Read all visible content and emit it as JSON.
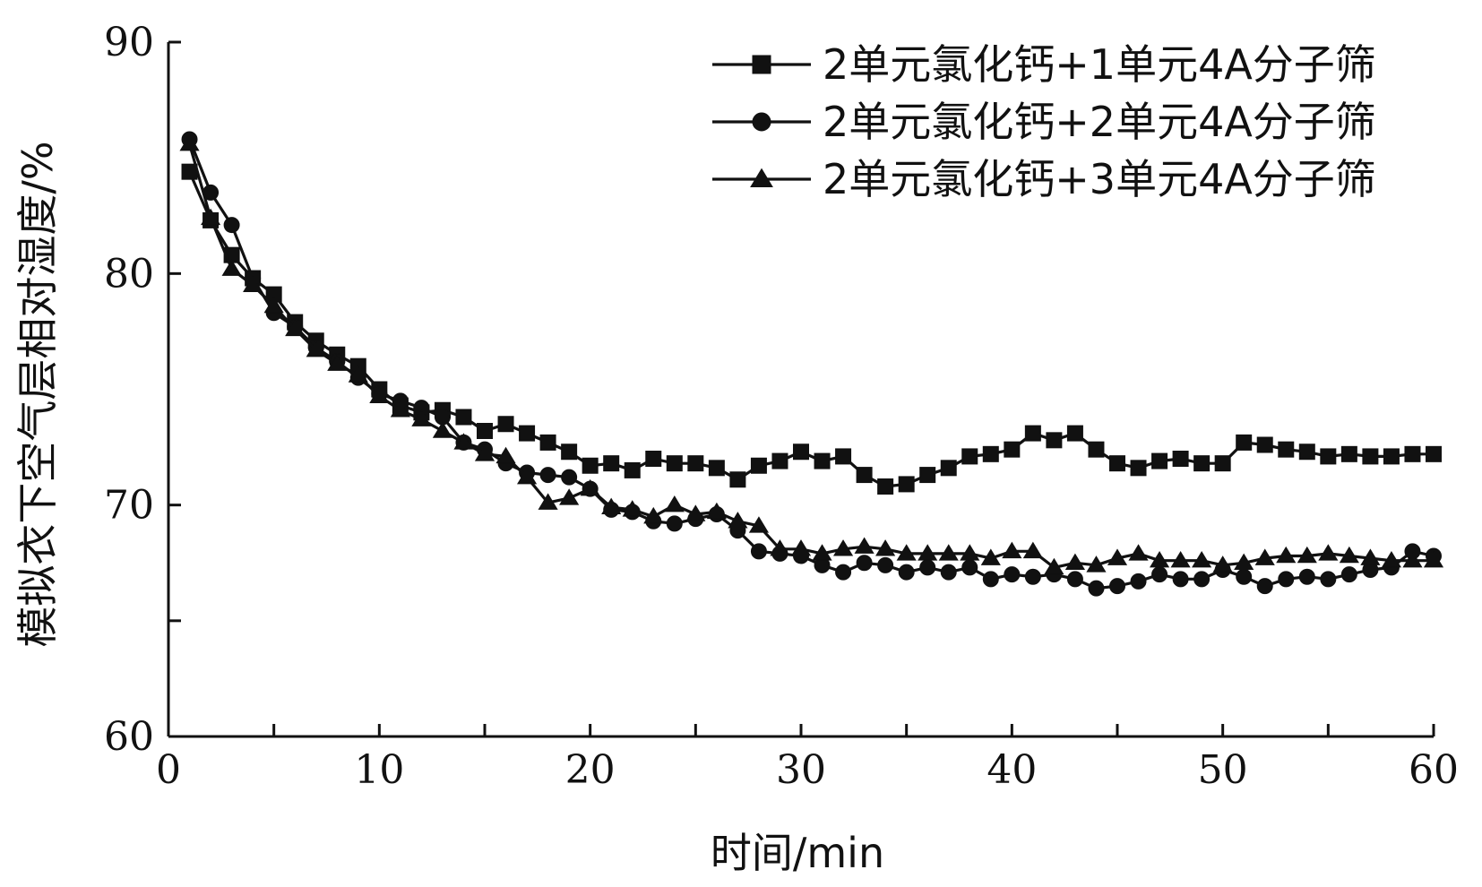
{
  "chart_data": {
    "type": "line",
    "title": "",
    "xlabel": "时间/min",
    "ylabel": "模拟衣下空气层相对湿度/%",
    "xlim": [
      0,
      60
    ],
    "ylim": [
      60,
      90
    ],
    "xticks": [
      0,
      10,
      20,
      30,
      40,
      50,
      60
    ],
    "yticks": [
      60,
      70,
      80,
      90
    ],
    "x_tick_labels": [
      "0",
      "10",
      "20",
      "30",
      "40",
      "50",
      "60"
    ],
    "y_tick_labels": [
      "60",
      "70",
      "80",
      "90"
    ],
    "y_minor_tick": 65,
    "grid": false,
    "legend_position": "top-right",
    "series": [
      {
        "name": "2单元氯化钙+1单元4A分子筛",
        "marker": "square",
        "x": [
          1,
          2,
          3,
          4,
          5,
          6,
          7,
          8,
          9,
          10,
          11,
          12,
          13,
          14,
          15,
          16,
          17,
          18,
          19,
          20,
          21,
          22,
          23,
          24,
          25,
          26,
          27,
          28,
          29,
          30,
          31,
          32,
          33,
          34,
          35,
          36,
          37,
          38,
          39,
          40,
          41,
          42,
          43,
          44,
          45,
          46,
          47,
          48,
          49,
          50,
          51,
          52,
          53,
          54,
          55,
          56,
          57,
          58,
          59,
          60
        ],
        "y": [
          84.4,
          82.3,
          80.8,
          79.8,
          79.1,
          77.9,
          77.1,
          76.5,
          76.0,
          75.0,
          74.3,
          74.0,
          74.1,
          73.8,
          73.2,
          73.5,
          73.1,
          72.7,
          72.3,
          71.7,
          71.8,
          71.5,
          72.0,
          71.8,
          71.8,
          71.6,
          71.1,
          71.7,
          71.9,
          72.3,
          71.9,
          72.1,
          71.3,
          70.8,
          70.9,
          71.3,
          71.6,
          72.1,
          72.2,
          72.4,
          73.1,
          72.8,
          73.1,
          72.4,
          71.8,
          71.6,
          71.9,
          72.0,
          71.8,
          71.8,
          72.7,
          72.6,
          72.4,
          72.3,
          72.1,
          72.2,
          72.1,
          72.1,
          72.2,
          72.2
        ]
      },
      {
        "name": "2单元氯化钙+2单元4A分子筛",
        "marker": "circle",
        "x": [
          1,
          2,
          3,
          4,
          5,
          6,
          7,
          8,
          9,
          10,
          11,
          12,
          13,
          14,
          15,
          16,
          17,
          18,
          19,
          20,
          21,
          22,
          23,
          24,
          25,
          26,
          27,
          28,
          29,
          30,
          31,
          32,
          33,
          34,
          35,
          36,
          37,
          38,
          39,
          40,
          41,
          42,
          43,
          44,
          45,
          46,
          47,
          48,
          49,
          50,
          51,
          52,
          53,
          54,
          55,
          56,
          57,
          58,
          59,
          60
        ],
        "y": [
          85.8,
          83.5,
          82.1,
          79.8,
          78.3,
          77.7,
          76.8,
          76.2,
          75.5,
          74.8,
          74.5,
          74.2,
          73.8,
          72.7,
          72.4,
          71.8,
          71.4,
          71.3,
          71.2,
          70.7,
          69.8,
          69.7,
          69.3,
          69.2,
          69.4,
          69.6,
          68.9,
          68.0,
          67.9,
          67.8,
          67.4,
          67.1,
          67.5,
          67.4,
          67.1,
          67.3,
          67.1,
          67.3,
          66.8,
          67.0,
          66.9,
          67.0,
          66.8,
          66.4,
          66.5,
          66.7,
          67.0,
          66.8,
          66.8,
          67.2,
          66.9,
          66.5,
          66.8,
          66.9,
          66.8,
          67.0,
          67.2,
          67.3,
          68.0,
          67.8
        ]
      },
      {
        "name": "2单元氯化钙+3单元4A分子筛",
        "marker": "triangle",
        "x": [
          1,
          2,
          3,
          4,
          5,
          6,
          7,
          8,
          9,
          10,
          11,
          12,
          13,
          14,
          15,
          16,
          17,
          18,
          19,
          20,
          21,
          22,
          23,
          24,
          25,
          26,
          27,
          28,
          29,
          30,
          31,
          32,
          33,
          34,
          35,
          36,
          37,
          38,
          39,
          40,
          41,
          42,
          43,
          44,
          45,
          46,
          47,
          48,
          49,
          50,
          51,
          52,
          53,
          54,
          55,
          56,
          57,
          58,
          59,
          60
        ],
        "y": [
          85.6,
          82.4,
          80.2,
          79.5,
          78.6,
          77.6,
          76.7,
          76.1,
          75.6,
          74.7,
          74.1,
          73.7,
          73.2,
          72.7,
          72.2,
          72.1,
          71.2,
          70.1,
          70.3,
          70.7,
          69.9,
          69.8,
          69.5,
          70.0,
          69.6,
          69.7,
          69.3,
          69.1,
          68.1,
          68.1,
          67.9,
          68.1,
          68.2,
          68.1,
          67.9,
          67.9,
          67.9,
          67.9,
          67.7,
          68.0,
          68.0,
          67.3,
          67.5,
          67.4,
          67.7,
          67.9,
          67.6,
          67.6,
          67.6,
          67.4,
          67.5,
          67.7,
          67.8,
          67.8,
          67.9,
          67.8,
          67.7,
          67.6,
          67.6,
          67.6
        ]
      }
    ]
  }
}
